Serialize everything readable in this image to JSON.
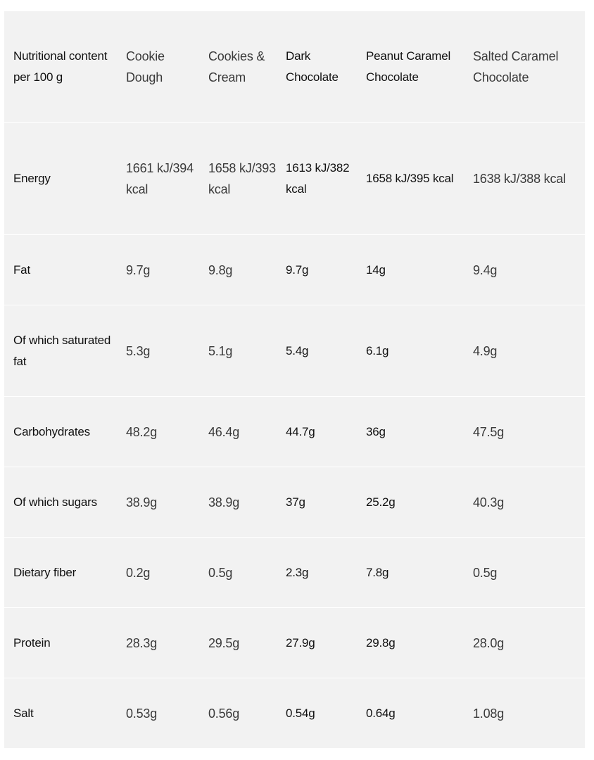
{
  "table": {
    "headers": [
      "Nutritional content per 100 g",
      "Cookie Dough",
      "Cookies & Cream",
      "Dark Chocolate",
      "Peanut Caramel Chocolate",
      "Salted Caramel Chocolate"
    ],
    "rows": [
      {
        "label": "Energy",
        "values": [
          "1661 kJ/394 kcal",
          "1658 kJ/393 kcal",
          "1613 kJ/382 kcal",
          "1658 kJ/395 kcal",
          "1638 kJ/388 kcal"
        ]
      },
      {
        "label": "Fat",
        "values": [
          "9.7g",
          "9.8g",
          "9.7g",
          "14g",
          "9.4g"
        ]
      },
      {
        "label": "Of which saturated fat",
        "values": [
          "5.3g",
          "5.1g",
          "5.4g",
          "6.1g",
          "4.9g"
        ]
      },
      {
        "label": "Carbohydrates",
        "values": [
          "48.2g",
          "46.4g",
          "44.7g",
          "36g",
          "47.5g"
        ]
      },
      {
        "label": "Of which sugars",
        "values": [
          "38.9g",
          "38.9g",
          "37g",
          "25.2g",
          "40.3g"
        ]
      },
      {
        "label": "Dietary fiber",
        "values": [
          "0.2g",
          "0.5g",
          "2.3g",
          "7.8g",
          "0.5g"
        ]
      },
      {
        "label": "Protein",
        "values": [
          "28.3g",
          "29.5g",
          "27.9g",
          "29.8g",
          "28.0g"
        ]
      },
      {
        "label": "Salt",
        "values": [
          "0.53g",
          "0.56g",
          "0.54g",
          "0.64g",
          "1.08g"
        ]
      }
    ]
  }
}
